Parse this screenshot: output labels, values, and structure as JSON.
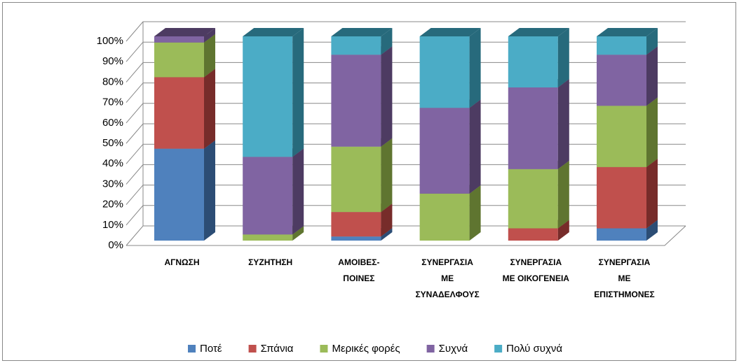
{
  "chart_data": {
    "type": "bar",
    "stacked": true,
    "three_d": true,
    "categories": [
      "ΑΓΝΩΣΗ",
      "ΣΥΖΗΤΗΣΗ",
      "ΑΜΟΙΒΕΣ-\nΠΟΙΝΕΣ",
      "ΣΥΝΕΡΓΑΣΙΑ\nΜΕ\nΣΥΝΑΔΕΛΦΟΥΣ",
      "ΣΥΝΕΡΓΑΣΙΑ\nΜΕ ΟΙΚΟΓΕΝΕΙΑ",
      "ΣΥΝΕΡΓΑΣΙΑ\nΜΕ\nΕΠΙΣΤΗΜΟΝΕΣ"
    ],
    "series": [
      {
        "name": "Ποτέ",
        "color": "#4f81bd",
        "side": "#2c4d75",
        "values": [
          45,
          0,
          2,
          0,
          0,
          6
        ]
      },
      {
        "name": "Σπάνια",
        "color": "#c0504d",
        "side": "#772c2a",
        "values": [
          35,
          0,
          12,
          0,
          6,
          30
        ]
      },
      {
        "name": "Μερικές φορές",
        "color": "#9bbb59",
        "side": "#5f7530",
        "values": [
          17,
          3,
          32,
          23,
          29,
          30
        ]
      },
      {
        "name": "Συχνά",
        "color": "#8064a2",
        "side": "#4d3b62",
        "values": [
          3,
          38,
          45,
          42,
          40,
          25
        ]
      },
      {
        "name": "Πολύ συχνά",
        "color": "#4bacc6",
        "side": "#276a7c",
        "values": [
          0,
          59,
          9,
          35,
          25,
          9
        ]
      }
    ],
    "ylim": [
      0,
      100
    ],
    "yticks": [
      {
        "value": 0,
        "label": "0%"
      },
      {
        "value": 10,
        "label": "10%"
      },
      {
        "value": 20,
        "label": "20%"
      },
      {
        "value": 30,
        "label": "30%"
      },
      {
        "value": 40,
        "label": "40%"
      },
      {
        "value": 50,
        "label": "50%"
      },
      {
        "value": 60,
        "label": "60%"
      },
      {
        "value": 70,
        "label": "70%"
      },
      {
        "value": 80,
        "label": "80%"
      },
      {
        "value": 90,
        "label": "90%"
      },
      {
        "value": 100,
        "label": "100%"
      }
    ],
    "grid": true,
    "legend": "bottom"
  }
}
